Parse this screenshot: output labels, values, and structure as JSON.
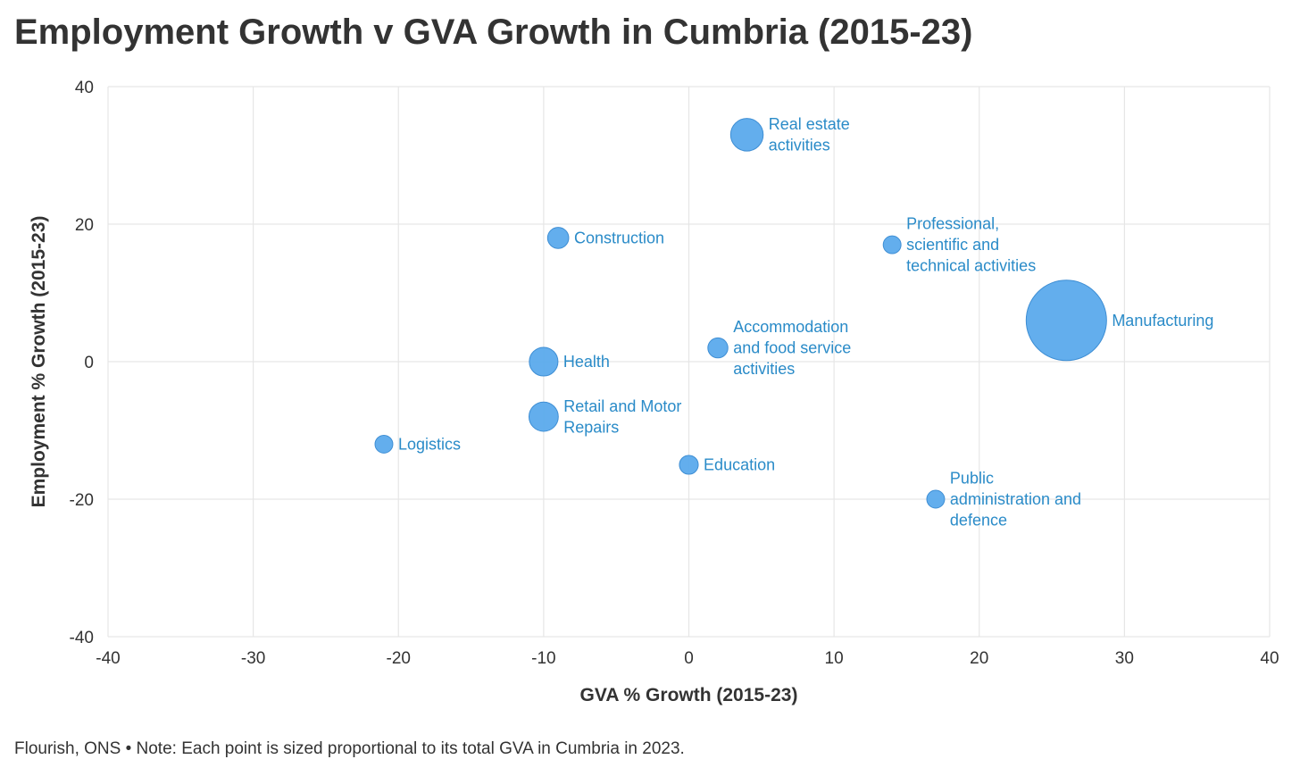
{
  "chart_data": {
    "type": "scatter",
    "title": "Employment Growth v GVA Growth in Cumbria (2015-23)",
    "xlabel": "GVA % Growth (2015-23)",
    "ylabel": "Employment % Growth (2015-23)",
    "xlim": [
      -40,
      40
    ],
    "ylim": [
      -40,
      40
    ],
    "xticks": [
      -40,
      -30,
      -20,
      -10,
      0,
      10,
      20,
      30,
      40
    ],
    "yticks": [
      -40,
      -20,
      0,
      20,
      40
    ],
    "xtick_labels": [
      "-40",
      "-30",
      "-20",
      "-10",
      "0",
      "10",
      "20",
      "30",
      "40"
    ],
    "ytick_labels": [
      "-40",
      "-20",
      "0",
      "20",
      "40"
    ],
    "grid": true,
    "size_note": "Each point is sized proportional to its total GVA in Cumbria in 2023.",
    "points": [
      {
        "name": "Real estate activities",
        "label_lines": [
          "Real estate",
          "activities"
        ],
        "x": 4,
        "y": 33,
        "size_rel": 0.164
      },
      {
        "name": "Construction",
        "label_lines": [
          "Construction"
        ],
        "x": -9,
        "y": 18,
        "size_rel": 0.069
      },
      {
        "name": "Professional, scientific and technical activities",
        "label_lines": [
          "Professional,",
          "scientific and",
          "technical activities"
        ],
        "x": 14,
        "y": 17,
        "size_rel": 0.049
      },
      {
        "name": "Manufacturing",
        "label_lines": [
          "Manufacturing"
        ],
        "x": 26,
        "y": 6,
        "size_rel": 1.0
      },
      {
        "name": "Accommodation and food service activities",
        "label_lines": [
          "Accommodation",
          "and food service",
          "activities"
        ],
        "x": 2,
        "y": 2,
        "size_rel": 0.062
      },
      {
        "name": "Health",
        "label_lines": [
          "Health"
        ],
        "x": -10,
        "y": 0,
        "size_rel": 0.127
      },
      {
        "name": "Retail and Motor Repairs",
        "label_lines": [
          "Retail and Motor",
          "Repairs"
        ],
        "x": -10,
        "y": -8,
        "size_rel": 0.133
      },
      {
        "name": "Logistics",
        "label_lines": [
          "Logistics"
        ],
        "x": -21,
        "y": -12,
        "size_rel": 0.049
      },
      {
        "name": "Education",
        "label_lines": [
          "Education"
        ],
        "x": 0,
        "y": -15,
        "size_rel": 0.055
      },
      {
        "name": "Public administration and defence",
        "label_lines": [
          "Public",
          "administration and",
          "defence"
        ],
        "x": 17,
        "y": -20,
        "size_rel": 0.049
      }
    ]
  },
  "footer": {
    "note": "Flourish, ONS • Note: Each point is sized proportional to its total GVA in Cumbria in 2023."
  },
  "colors": {
    "bubble_fill": "#5BAAEC",
    "bubble_stroke": "#3E8ED4",
    "label_text": "#2A8BC8",
    "grid": "#E6E6E6",
    "text": "#333333"
  }
}
